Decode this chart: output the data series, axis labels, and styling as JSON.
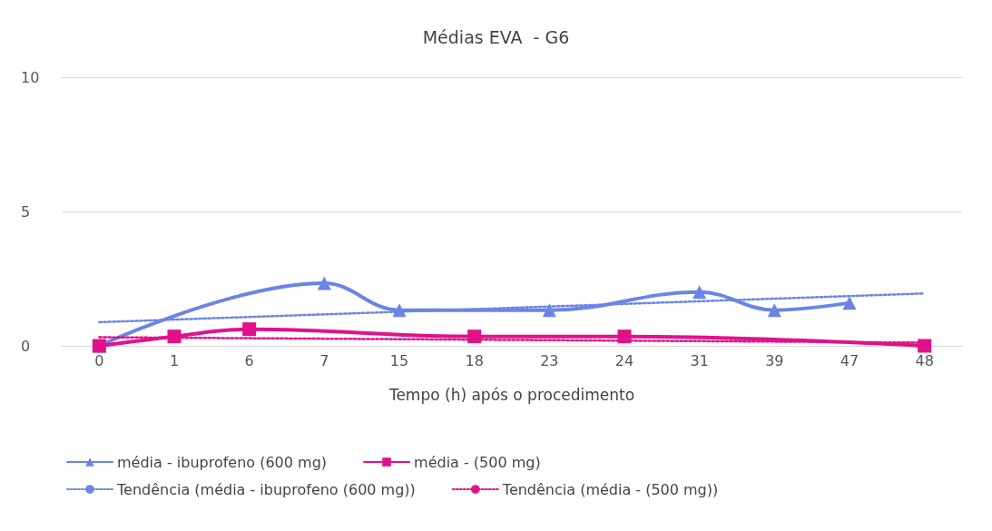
{
  "chart_data": {
    "type": "line",
    "title": "Médias EVA  - G6",
    "xlabel": "Tempo (h) após o procedimento",
    "categories": [
      "0",
      "1",
      "6",
      "7",
      "15",
      "18",
      "23",
      "24",
      "31",
      "39",
      "47",
      "48"
    ],
    "ylim": [
      0,
      10
    ],
    "yticks": [
      0,
      5,
      10
    ],
    "grid": "y",
    "legend": "bottom",
    "series": [
      {
        "name": "média - ibuprofeno (600 mg)",
        "color": "#6b84e6",
        "marker": "triangle",
        "line_style": "solid",
        "values": [
          0,
          null,
          null,
          2.33,
          1.33,
          null,
          1.33,
          null,
          2,
          1.33,
          1.6,
          null
        ]
      },
      {
        "name": "média - (500 mg)",
        "color": "#e0128a",
        "marker": "square",
        "line_style": "solid",
        "values": [
          0,
          0.35,
          0.62,
          null,
          null,
          0.35,
          null,
          0.35,
          null,
          null,
          null,
          0
        ]
      },
      {
        "name": "Tendência (média - ibuprofeno (600 mg))",
        "color": "#6b84e6",
        "marker": "none",
        "line_style": "dotted",
        "values": [
          0.88,
          null,
          null,
          null,
          null,
          null,
          null,
          null,
          null,
          null,
          null,
          1.95
        ]
      },
      {
        "name": "Tendência (média - (500 mg))",
        "color": "#e0128a",
        "marker": "none",
        "line_style": "dotted",
        "values": [
          0.32,
          null,
          null,
          null,
          null,
          null,
          null,
          null,
          null,
          null,
          null,
          0.12
        ]
      }
    ]
  }
}
